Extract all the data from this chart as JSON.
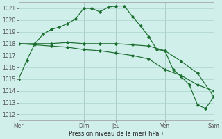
{
  "bg_color": "#d0eeea",
  "grid_color": "#b0d8d0",
  "line_color": "#1a6e2e",
  "xlabel": "Pression niveau de la mer( hPa )",
  "ylim": [
    1011.5,
    1021.5
  ],
  "yticks": [
    1012,
    1013,
    1014,
    1015,
    1016,
    1017,
    1018,
    1019,
    1020,
    1021
  ],
  "xtick_labels": [
    "Mer",
    "Dim",
    "Jeu",
    "Ven",
    "Sam"
  ],
  "xtick_positions": [
    0,
    4,
    6,
    9,
    12
  ],
  "series1_x": [
    0,
    0.5,
    1,
    1.5,
    2,
    2.5,
    3,
    3.5,
    4,
    4.5,
    5,
    5.5,
    6,
    6.5,
    7,
    7.5,
    8,
    8.5,
    9,
    9.5,
    10,
    10.5,
    11,
    11.5,
    12
  ],
  "series1_y": [
    1015.0,
    1016.6,
    1018.0,
    1018.8,
    1019.2,
    1019.4,
    1019.7,
    1020.1,
    1021.0,
    1021.0,
    1020.7,
    1021.1,
    1021.2,
    1021.2,
    1020.3,
    1019.5,
    1018.6,
    1017.5,
    1017.4,
    1015.8,
    1015.2,
    1014.5,
    1012.8,
    1012.5,
    1013.5
  ],
  "series2_x": [
    0,
    1,
    2,
    3,
    4,
    5,
    6,
    7,
    8,
    9,
    10,
    11,
    12
  ],
  "series2_y": [
    1018.0,
    1018.0,
    1018.0,
    1018.1,
    1018.0,
    1018.0,
    1018.0,
    1017.9,
    1017.8,
    1017.4,
    1016.5,
    1015.5,
    1013.5
  ],
  "series3_x": [
    0,
    1,
    2,
    3,
    4,
    5,
    6,
    7,
    8,
    9,
    10,
    11,
    12
  ],
  "series3_y": [
    1018.0,
    1017.9,
    1017.8,
    1017.7,
    1017.5,
    1017.4,
    1017.2,
    1017.0,
    1016.7,
    1015.8,
    1015.3,
    1014.5,
    1014.0
  ]
}
